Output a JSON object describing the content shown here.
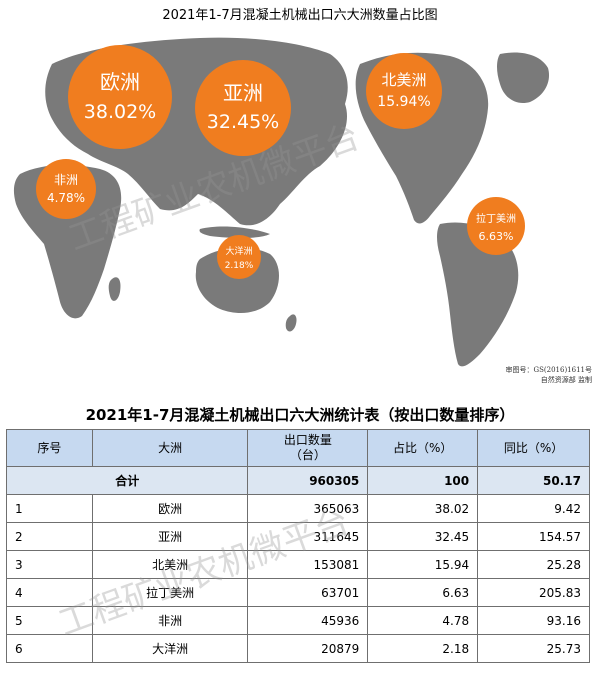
{
  "map_title": "2021年1-7月混凝土机械出口六大洲数量占比图",
  "map_approval": [
    "审图号：GS(2016)1611号",
    "自然资源部 监制"
  ],
  "watermark": "工程矿业农机微平台",
  "colors": {
    "land": "#7a7a7a",
    "bubble": "#f07d1f",
    "bubble_text": "#ffffff",
    "header_bg": "#c6d9f0",
    "total_bg": "#dce6f2"
  },
  "bubbles": [
    {
      "name": "欧洲",
      "pct": "38.02%"
    },
    {
      "name": "亚洲",
      "pct": "32.45%"
    },
    {
      "name": "北美洲",
      "pct": "15.94%"
    },
    {
      "name": "非洲",
      "pct": "4.78%"
    },
    {
      "name": "大洋洲",
      "pct": "2.18%"
    },
    {
      "name": "拉丁美洲",
      "pct": "6.63%"
    }
  ],
  "table": {
    "title": "2021年1-7月混凝土机械出口六大洲统计表（按出口数量排序）",
    "headers": {
      "seq": "序号",
      "continent": "大洲",
      "qty": "出口数量\n（台）",
      "share": "占比（%）",
      "yoy": "同比（%）"
    },
    "total": {
      "label": "合计",
      "qty": "960305",
      "share": "100",
      "yoy": "50.17"
    },
    "rows": [
      {
        "seq": "1",
        "continent": "欧洲",
        "qty": "365063",
        "share": "38.02",
        "yoy": "9.42"
      },
      {
        "seq": "2",
        "continent": "亚洲",
        "qty": "311645",
        "share": "32.45",
        "yoy": "154.57"
      },
      {
        "seq": "3",
        "continent": "北美洲",
        "qty": "153081",
        "share": "15.94",
        "yoy": "25.28"
      },
      {
        "seq": "4",
        "continent": "拉丁美洲",
        "qty": "63701",
        "share": "6.63",
        "yoy": "205.83"
      },
      {
        "seq": "5",
        "continent": "非洲",
        "qty": "45936",
        "share": "4.78",
        "yoy": "93.16"
      },
      {
        "seq": "6",
        "continent": "大洋洲",
        "qty": "20879",
        "share": "2.18",
        "yoy": "25.73"
      }
    ]
  }
}
